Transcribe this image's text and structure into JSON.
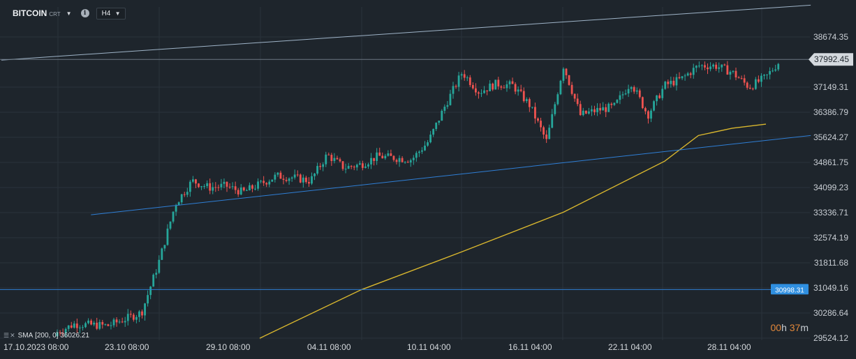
{
  "toolbar": {
    "symbol": "BITCOIN",
    "exchange": "CRT",
    "timeframe": "H4",
    "info_icon": "info-icon",
    "dropdown_icon": "chevron-down-icon"
  },
  "indicator": {
    "label": "SMA",
    "params": "[200, 0]",
    "value": "36026.21",
    "icons": [
      "settings-icon",
      "close-icon"
    ]
  },
  "countdown": {
    "hours": "00",
    "hours_unit": "h",
    "minutes": "37",
    "minutes_unit": "m"
  },
  "colors": {
    "background": "#1e252c",
    "grid": "#2a323b",
    "up": "#26a69a",
    "down": "#ef5350",
    "sma": "#d9b72e",
    "trendline": "#2f7fd6",
    "channel_top": "#9fb4c8",
    "countdown": "#e2873a",
    "price_label_bg": "#d4d9de",
    "level_label_bg": "#2f8fe0"
  },
  "chart_data": {
    "type": "candlestick",
    "symbol": "BITCOIN",
    "timeframe": "H4",
    "y_ticks": [
      "38674.35",
      "37149.31",
      "36386.79",
      "35624.27",
      "34861.75",
      "34099.23",
      "33336.71",
      "32574.19",
      "31811.68",
      "31049.16",
      "30286.64",
      "29524.12"
    ],
    "x_ticks": [
      "17.10.2023  08:00",
      "23.10  08:00",
      "29.10  08:00",
      "04.11  08:00",
      "10.11  04:00",
      "16.11  04:00",
      "22.11  04:00",
      "28.11  04:00"
    ],
    "ylim": [
      29420,
      39720
    ],
    "grid": true,
    "current_price": "37992.45",
    "horizontal_level": "30998.31",
    "sma": {
      "name": "SMA",
      "period": 200,
      "value": "36026.21"
    },
    "series_anchor_close": [
      [
        "17.10",
        29700
      ],
      [
        "18.10",
        29950
      ],
      [
        "20.10",
        29900
      ],
      [
        "22.10",
        30300
      ],
      [
        "23.10",
        31800
      ],
      [
        "24.10",
        33600
      ],
      [
        "25.10",
        34300
      ],
      [
        "26.10",
        34100
      ],
      [
        "27.10",
        34150
      ],
      [
        "28.10",
        33950
      ],
      [
        "29.10",
        34200
      ],
      [
        "30.10",
        34450
      ],
      [
        "31.10",
        34400
      ],
      [
        "01.11",
        34300
      ],
      [
        "02.11",
        35100
      ],
      [
        "03.11",
        34700
      ],
      [
        "04.11",
        34800
      ],
      [
        "05.11",
        35050
      ],
      [
        "06.11",
        35000
      ],
      [
        "07.11",
        34950
      ],
      [
        "08.11",
        35500
      ],
      [
        "09.11",
        36600
      ],
      [
        "10.11",
        37600
      ],
      [
        "11.11",
        37000
      ],
      [
        "12.11",
        37250
      ],
      [
        "13.11",
        37200
      ],
      [
        "14.11",
        36600
      ],
      [
        "15.11",
        35500
      ],
      [
        "16.11",
        37800
      ],
      [
        "17.11",
        36300
      ],
      [
        "18.11",
        36450
      ],
      [
        "19.11",
        36550
      ],
      [
        "20.11",
        37300
      ],
      [
        "21.11",
        36300
      ],
      [
        "22.11",
        37200
      ],
      [
        "23.11",
        37400
      ],
      [
        "24.11",
        37800
      ],
      [
        "25.11",
        37800
      ],
      [
        "26.11",
        37600
      ],
      [
        "27.11",
        37150
      ],
      [
        "28.11",
        37450
      ],
      [
        "28.11 pm",
        37992
      ]
    ],
    "sma_anchor": [
      [
        "29.10",
        29520
      ],
      [
        "04.11",
        30990
      ],
      [
        "10.11",
        32150
      ],
      [
        "16.11",
        33350
      ],
      [
        "22.11",
        34900
      ],
      [
        "24.11",
        35680
      ],
      [
        "26.11",
        35900
      ],
      [
        "28.11",
        36026
      ]
    ],
    "trendlines": [
      {
        "name": "support",
        "from": [
          "19.10",
          33270
        ],
        "to": [
          "29.11",
          35680
        ]
      },
      {
        "name": "resistance",
        "from": [
          "17.10",
          37970
        ],
        "to": [
          "29.11",
          39640
        ]
      }
    ]
  }
}
